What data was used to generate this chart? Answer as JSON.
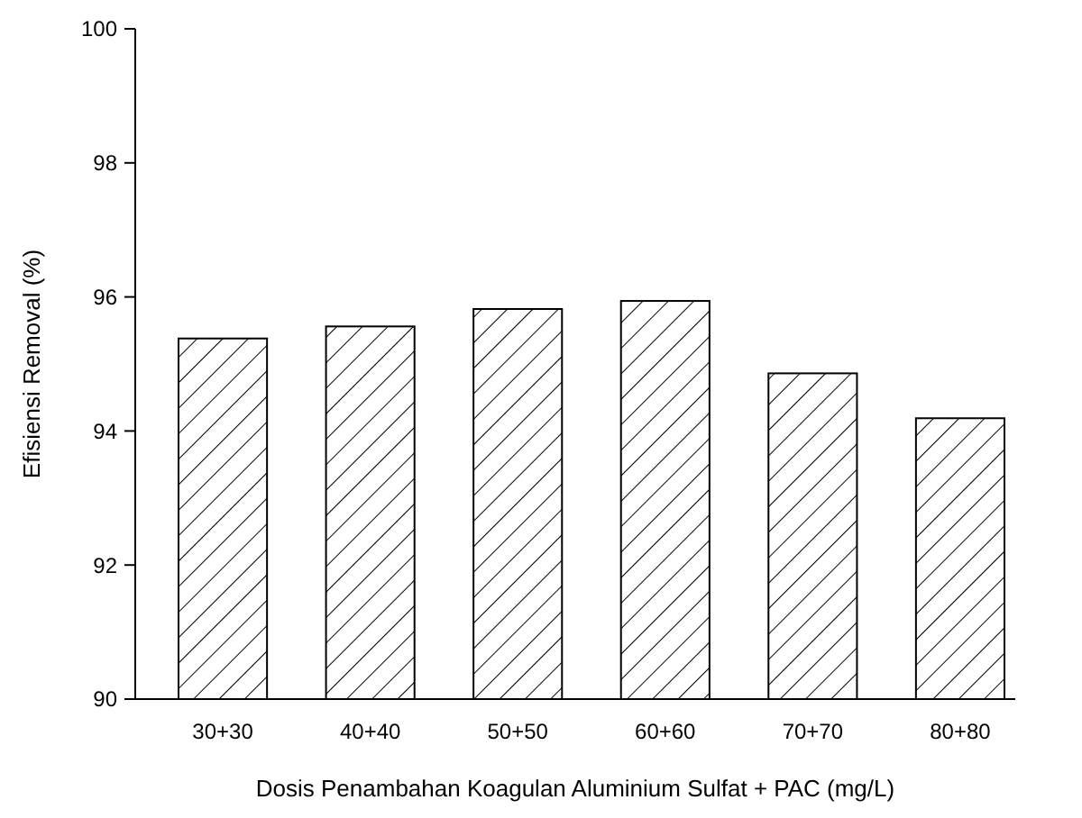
{
  "chart_data": {
    "type": "bar",
    "xlabel": "Dosis Penambahan Koagulan Aluminium Sulfat + PAC (mg/L)",
    "ylabel": "Efisiensi Removal (%)",
    "categories": [
      "30+30",
      "40+40",
      "50+50",
      "60+60",
      "70+70",
      "80+80"
    ],
    "values": [
      95.38,
      95.56,
      95.82,
      95.94,
      94.86,
      94.19
    ],
    "color": "#000000",
    "ylim": [
      90,
      100
    ],
    "yticks": [
      90,
      92,
      94,
      96,
      98,
      100
    ],
    "grid": false
  }
}
